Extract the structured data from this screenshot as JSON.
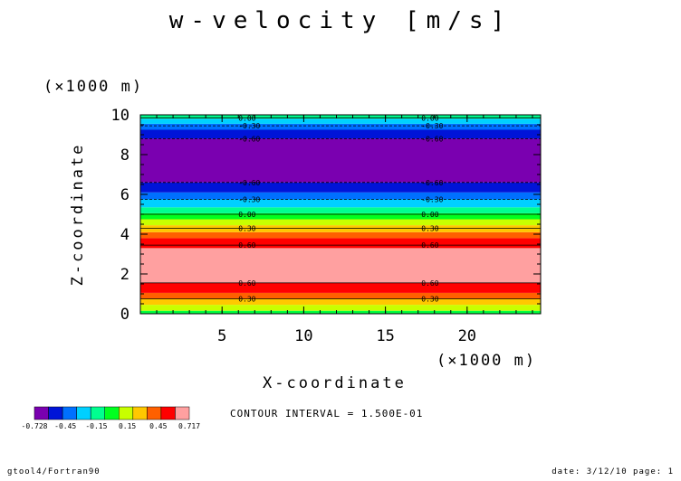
{
  "chart_data": {
    "type": "heatmap",
    "title": "w-velocity [m/s]",
    "xlabel": "X-coordinate",
    "ylabel": "Z-coordinate",
    "x_scale_label": "(×1000 m)",
    "y_scale_label": "(×1000 m)",
    "xlim": [
      0,
      24.5
    ],
    "ylim": [
      0,
      10
    ],
    "xticks": [
      5,
      10,
      15,
      20
    ],
    "yticks": [
      0,
      2,
      4,
      6,
      8,
      10
    ],
    "colorbar": {
      "colors": [
        "#7a00b0",
        "#0014d8",
        "#0070ff",
        "#00d0ff",
        "#00ff90",
        "#00ff20",
        "#c8ff00",
        "#ffc800",
        "#ff6000",
        "#ff0000",
        "#ffa0a0"
      ],
      "tick_labels": [
        "-0.728",
        "-0.45",
        "-0.15",
        "0.15",
        "0.45",
        "0.717"
      ],
      "levels": [
        -0.728,
        -0.6,
        -0.45,
        -0.3,
        -0.15,
        0,
        0.15,
        0.3,
        0.45,
        0.6,
        0.717
      ]
    },
    "bands": [
      {
        "z0": 0.0,
        "z1": 0.15,
        "color": "#00ff40"
      },
      {
        "z0": 0.15,
        "z1": 0.45,
        "color": "#c8ff00"
      },
      {
        "z0": 0.45,
        "z1": 0.75,
        "color": "#ffc800"
      },
      {
        "z0": 0.75,
        "z1": 1.05,
        "color": "#ff6000"
      },
      {
        "z0": 1.05,
        "z1": 1.55,
        "color": "#ff0000"
      },
      {
        "z0": 1.55,
        "z1": 3.3,
        "color": "#ffa0a0"
      },
      {
        "z0": 3.3,
        "z1": 3.8,
        "color": "#ff0000"
      },
      {
        "z0": 3.8,
        "z1": 4.1,
        "color": "#ff6000"
      },
      {
        "z0": 4.1,
        "z1": 4.45,
        "color": "#ffc800"
      },
      {
        "z0": 4.45,
        "z1": 4.75,
        "color": "#c8ff00"
      },
      {
        "z0": 4.75,
        "z1": 5.05,
        "color": "#00ff20"
      },
      {
        "z0": 5.05,
        "z1": 5.35,
        "color": "#00ff90"
      },
      {
        "z0": 5.35,
        "z1": 5.75,
        "color": "#00d0ff"
      },
      {
        "z0": 5.75,
        "z1": 6.1,
        "color": "#0070ff"
      },
      {
        "z0": 6.1,
        "z1": 6.6,
        "color": "#0014d8"
      },
      {
        "z0": 6.6,
        "z1": 8.8,
        "color": "#7a00b0"
      },
      {
        "z0": 8.8,
        "z1": 9.25,
        "color": "#0014d8"
      },
      {
        "z0": 9.25,
        "z1": 9.55,
        "color": "#0070ff"
      },
      {
        "z0": 9.55,
        "z1": 9.8,
        "color": "#00d0ff"
      },
      {
        "z0": 9.8,
        "z1": 10.0,
        "color": "#00ff90"
      }
    ],
    "contours": [
      {
        "z": 0.75,
        "label": "0.30"
      },
      {
        "z": 1.55,
        "label": "0.60"
      },
      {
        "z": 3.45,
        "label": "0.60"
      },
      {
        "z": 4.3,
        "label": "0.30"
      },
      {
        "z": 5.0,
        "label": "0.00"
      },
      {
        "z": 5.75,
        "label": "-0.30"
      },
      {
        "z": 6.6,
        "label": "-0.60"
      },
      {
        "z": 8.8,
        "label": "-0.60"
      },
      {
        "z": 9.45,
        "label": "-0.30"
      },
      {
        "z": 9.85,
        "label": "0.00"
      }
    ],
    "contour_label_x": [
      6.0,
      17.2
    ]
  },
  "contour_interval_text": "CONTOUR INTERVAL = 1.500E-01",
  "footer": {
    "left": "gtool4/Fortran90",
    "right": "date: 3/12/10 page: 1"
  }
}
